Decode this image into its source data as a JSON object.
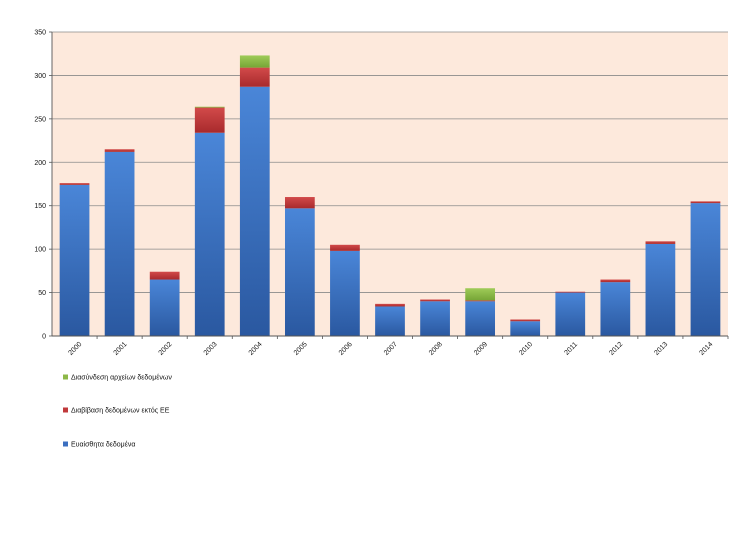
{
  "chart_data": {
    "type": "bar",
    "stacked": true,
    "title": "",
    "xlabel": "",
    "ylabel": "",
    "ylim": [
      0,
      350
    ],
    "y_ticks": [
      "0",
      "50",
      "100",
      "150",
      "200",
      "250",
      "300",
      "350"
    ],
    "y_tick_values": [
      0,
      50,
      100,
      150,
      200,
      250,
      300,
      350
    ],
    "grid": true,
    "legend_position": "bottom-left",
    "plot_background": "#fde9dc",
    "categories": [
      "2000",
      "2001",
      "2002",
      "2003",
      "2004",
      "2005",
      "2006",
      "2007",
      "2008",
      "2009",
      "2010",
      "2011",
      "2012",
      "2013",
      "2014"
    ],
    "series": [
      {
        "name": "Ευαίσθητα δεδομένα",
        "color": "#3b6fc0",
        "values": [
          174,
          212,
          65,
          234,
          287,
          147,
          98,
          34,
          40,
          40,
          17,
          50,
          62,
          106,
          153
        ]
      },
      {
        "name": "Διαβίβαση δεδομένων εκτός ΕΕ",
        "color": "#c0393b",
        "values": [
          2,
          3,
          9,
          29,
          22,
          13,
          7,
          3,
          2,
          1,
          2,
          1,
          3,
          3,
          2
        ]
      },
      {
        "name": "Διασύνδεση αρχείων δεδομένων",
        "color": "#8db848",
        "values": [
          0,
          0,
          0,
          1,
          14,
          0,
          0,
          0,
          0,
          14,
          0,
          0,
          0,
          0,
          0
        ]
      }
    ],
    "legend_order": [
      "Διασύνδεση αρχείων δεδομένων",
      "Διαβίβαση δεδομένων εκτός ΕΕ",
      "Ευαίσθητα δεδομένα"
    ]
  }
}
